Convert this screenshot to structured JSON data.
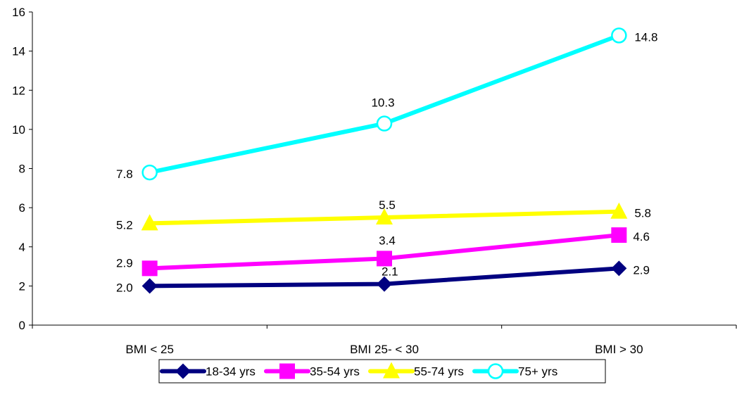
{
  "chart_data": {
    "type": "line",
    "title": "",
    "xlabel": "",
    "ylabel": "",
    "categories": [
      "BMI < 25",
      "BMI 25- < 30",
      "BMI > 30"
    ],
    "ylim": [
      0,
      16
    ],
    "yticks": [
      "0",
      "2",
      "4",
      "6",
      "8",
      "10",
      "12",
      "14",
      "16"
    ],
    "grid": false,
    "legend_position": "bottom",
    "series": [
      {
        "name": "18-34 yrs",
        "values": [
          2.0,
          2.1,
          2.9
        ],
        "labels": [
          "2.0",
          "2.1",
          "2.9"
        ],
        "color": "#000080",
        "marker": "diamond"
      },
      {
        "name": "35-54 yrs",
        "values": [
          2.9,
          3.4,
          4.6
        ],
        "labels": [
          "2.9",
          "3.4",
          "4.6"
        ],
        "color": "#ff00ff",
        "marker": "square"
      },
      {
        "name": "55-74 yrs",
        "values": [
          5.2,
          5.5,
          5.8
        ],
        "labels": [
          "5.2",
          "5.5",
          "5.8"
        ],
        "color": "#ffff00",
        "marker": "triangle"
      },
      {
        "name": "75+ yrs",
        "values": [
          7.8,
          10.3,
          14.8
        ],
        "labels": [
          "7.8",
          "10.3",
          "14.8"
        ],
        "color": "#00ffff",
        "marker": "circle"
      }
    ]
  }
}
